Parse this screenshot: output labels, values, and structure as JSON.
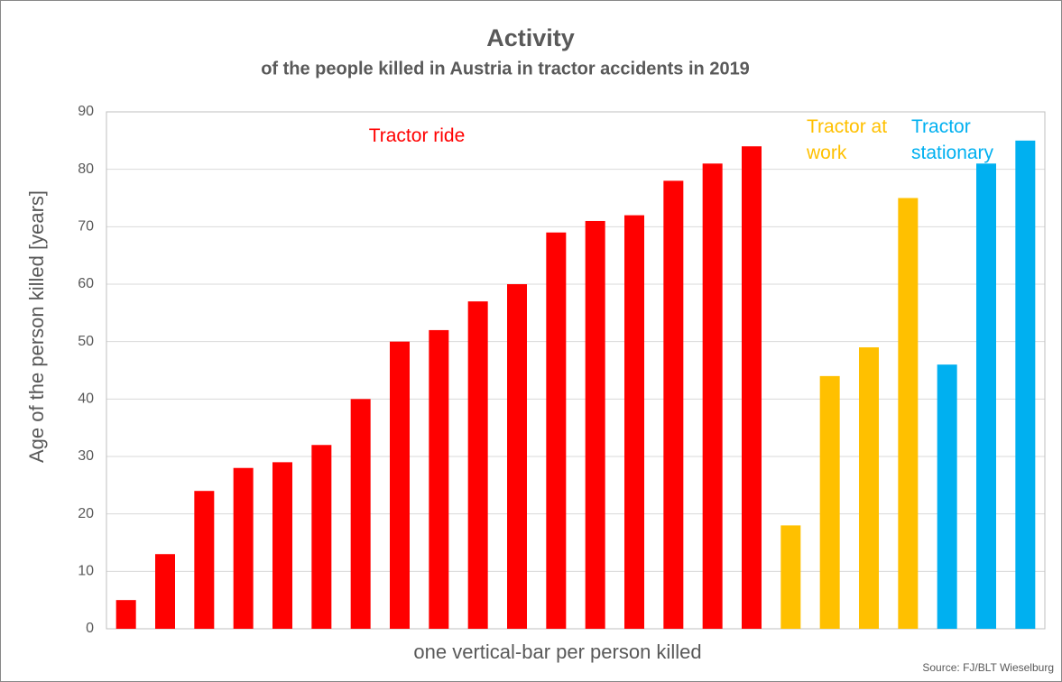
{
  "chart_data": {
    "type": "bar",
    "title": "Activity",
    "subtitle": "of the people killed in Austria in tractor accidents in 2019",
    "x_label": "one vertical-bar per person killed",
    "y_label": "Age of the person killed  [years]",
    "source": "Source: FJ/BLT Wieselburg",
    "categories": [
      null,
      null,
      null,
      null,
      null,
      null,
      null,
      null,
      null,
      null,
      null,
      null,
      null,
      null,
      null,
      null,
      null,
      null,
      null,
      null,
      null,
      null,
      null,
      null
    ],
    "series": [
      {
        "name": "Tractor ride",
        "color": "#ff0000",
        "values": [
          5,
          13,
          24,
          28,
          29,
          32,
          40,
          50,
          52,
          57,
          60,
          69,
          71,
          72,
          78,
          81,
          84,
          null,
          null,
          null,
          null,
          null,
          null,
          null
        ]
      },
      {
        "name": "Tractor at work",
        "color": "#ffc000",
        "values": [
          null,
          null,
          null,
          null,
          null,
          null,
          null,
          null,
          null,
          null,
          null,
          null,
          null,
          null,
          null,
          null,
          null,
          18,
          44,
          49,
          75,
          null,
          null,
          null
        ]
      },
      {
        "name": "Tractor stationary",
        "color": "#00b0f0",
        "values": [
          null,
          null,
          null,
          null,
          null,
          null,
          null,
          null,
          null,
          null,
          null,
          null,
          null,
          null,
          null,
          null,
          null,
          null,
          null,
          null,
          null,
          46,
          81,
          85
        ]
      }
    ],
    "ylim": [
      0,
      90
    ],
    "yticks": [
      0,
      10,
      20,
      30,
      40,
      50,
      60,
      70,
      80,
      90
    ],
    "grid": true
  }
}
